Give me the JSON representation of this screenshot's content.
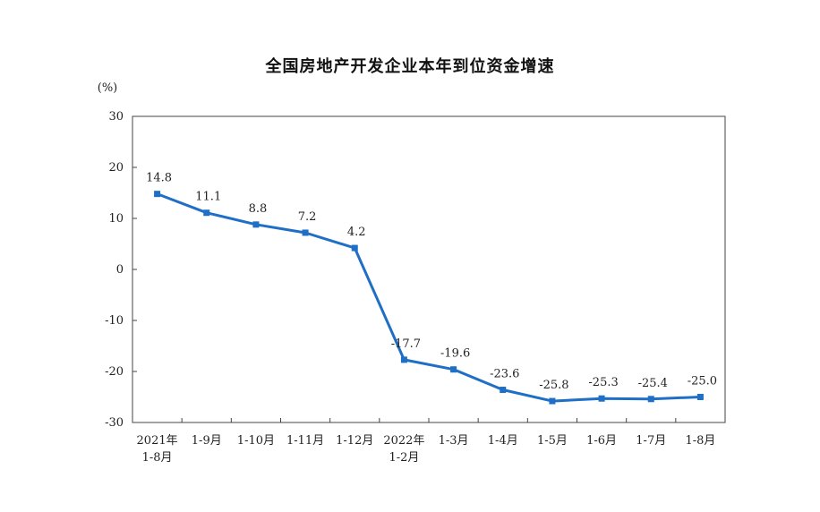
{
  "chart_data": {
    "type": "line",
    "title": "全国房地产开发企业本年到位资金增速",
    "ylabel": "(%)",
    "xlabel": "",
    "ylim": [
      -30,
      30
    ],
    "yticks": [
      30,
      20,
      10,
      0,
      -10,
      -20,
      -30
    ],
    "grid": false,
    "legend": "none",
    "categories": [
      [
        "2021年",
        "1-8月"
      ],
      [
        "1-9月"
      ],
      [
        "1-10月"
      ],
      [
        "1-11月"
      ],
      [
        "1-12月"
      ],
      [
        "2022年",
        "1-2月"
      ],
      [
        "1-3月"
      ],
      [
        "1-4月"
      ],
      [
        "1-5月"
      ],
      [
        "1-6月"
      ],
      [
        "1-7月"
      ],
      [
        "1-8月"
      ]
    ],
    "series": [
      {
        "values": [
          14.8,
          11.1,
          8.8,
          7.2,
          4.2,
          -17.7,
          -19.6,
          -23.6,
          -25.8,
          -25.3,
          -25.4,
          -25.0
        ],
        "labels": [
          "14.8",
          "11.1",
          "8.8",
          "7.2",
          "4.2",
          "-17.7",
          "-19.6",
          "-23.6",
          "-25.8",
          "-25.3",
          "-25.4",
          "-25.0"
        ],
        "color": "#1f6fc6"
      }
    ]
  }
}
